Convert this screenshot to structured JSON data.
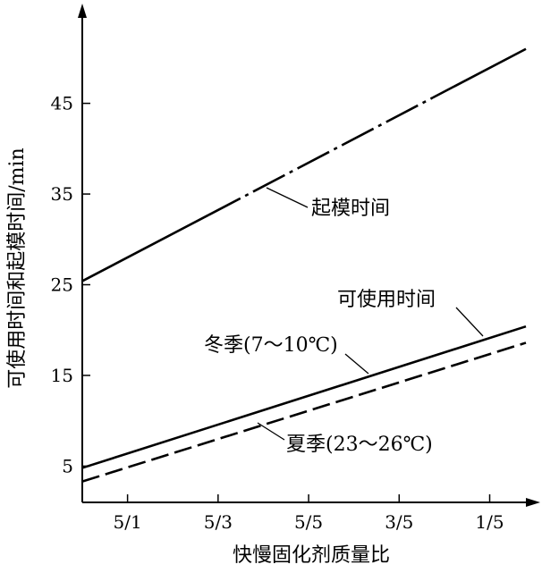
{
  "chart_data": {
    "type": "line",
    "xlabel": "快慢固化剂质量比",
    "ylabel": "可使用时间和起模时间/min",
    "categories": [
      "5/1",
      "5/3",
      "5/5",
      "3/5",
      "1/5"
    ],
    "yticks": [
      5,
      15,
      25,
      35,
      45
    ],
    "ylim": [
      1,
      56
    ],
    "xlim_categories": [
      -0.5,
      4.4
    ],
    "grid": false,
    "legend": "none",
    "series": [
      {
        "name": "起模时间",
        "style": "solid-then-dash-dot-then-solid",
        "x": [
          -0.5,
          4.4
        ],
        "y": [
          25.4,
          51.0
        ]
      },
      {
        "name": "冬季(7～10℃)",
        "style": "solid",
        "x": [
          -0.5,
          4.4
        ],
        "y": [
          4.8,
          20.4
        ]
      },
      {
        "name": "夏季(23～26℃)",
        "style": "dashed",
        "x": [
          -0.5,
          4.4
        ],
        "y": [
          3.3,
          18.6
        ]
      }
    ],
    "annotations": [
      {
        "text": "起模时间",
        "target_series": 0
      },
      {
        "text": "可使用时间",
        "target_series": 1
      },
      {
        "text": "冬季(7～10℃)",
        "target_series": 1
      },
      {
        "text": "夏季(23～26℃)",
        "target_series": 2
      }
    ]
  }
}
